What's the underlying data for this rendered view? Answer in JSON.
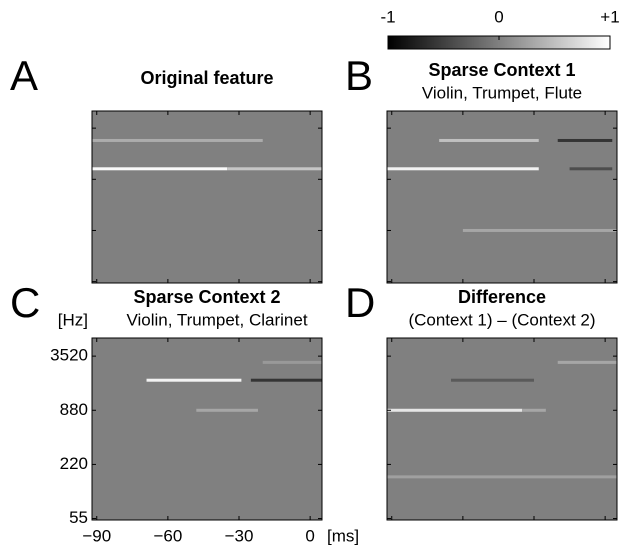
{
  "colorbar": {
    "lim": [
      -1,
      1
    ],
    "ticks": [
      -1,
      0,
      {
        "value": 1,
        "label": "+1"
      }
    ]
  },
  "chart_data": [
    {
      "type": "heatmap",
      "letter": "A",
      "title": "Original feature",
      "rows": [
        {
          "hz": 2520,
          "value": 0.35,
          "from": -92,
          "to": -20
        },
        {
          "hz": 1170,
          "value": 0.95,
          "from": -92,
          "to": -35
        },
        {
          "hz": 1170,
          "value": 0.55,
          "from": -35,
          "to": 5
        }
      ]
    },
    {
      "type": "heatmap",
      "letter": "B",
      "title": "Sparse Context 1",
      "subtitle": "Violin, Trumpet, Flute",
      "rows": [
        {
          "hz": 2520,
          "value": 0.5,
          "from": -70,
          "to": -28
        },
        {
          "hz": 2520,
          "value": -0.6,
          "from": -20,
          "to": 3
        },
        {
          "hz": 1170,
          "value": 0.9,
          "from": -92,
          "to": -28
        },
        {
          "hz": 1170,
          "value": -0.4,
          "from": -15,
          "to": 3
        },
        {
          "hz": 220,
          "value": 0.3,
          "from": -60,
          "to": 5
        }
      ]
    },
    {
      "type": "heatmap",
      "letter": "C",
      "title": "Sparse Context 2",
      "subtitle": "Violin, Trumpet, Clarinet",
      "ylabel": "[Hz]",
      "xlabel": "[ms]",
      "ylog": true,
      "ylim": [
        53,
        5600
      ],
      "xlim": [
        -92,
        5
      ],
      "yticks": [
        55,
        220,
        880,
        3520
      ],
      "xticks": [
        {
          "value": -90,
          "label": "−90"
        },
        {
          "value": -60,
          "label": "−60"
        },
        {
          "value": -30,
          "label": "−30"
        },
        0
      ],
      "rows": [
        {
          "hz": 1900,
          "value": 0.9,
          "from": -69,
          "to": -29
        },
        {
          "hz": 1900,
          "value": -0.6,
          "from": -25,
          "to": 5
        },
        {
          "hz": 880,
          "value": 0.3,
          "from": -48,
          "to": -22
        },
        {
          "hz": 3000,
          "value": 0.2,
          "from": -20,
          "to": 5
        }
      ]
    },
    {
      "type": "heatmap",
      "letter": "D",
      "title": "Difference",
      "subtitle": "(Context 1) – (Context 2)",
      "rows": [
        {
          "hz": 880,
          "value": 0.8,
          "from": -92,
          "to": -35
        },
        {
          "hz": 880,
          "value": 0.3,
          "from": -35,
          "to": -25
        },
        {
          "hz": 1900,
          "value": -0.3,
          "from": -65,
          "to": -30
        },
        {
          "hz": 3000,
          "value": 0.3,
          "from": -20,
          "to": 5
        },
        {
          "hz": 160,
          "value": 0.25,
          "from": -92,
          "to": 5
        }
      ]
    }
  ]
}
